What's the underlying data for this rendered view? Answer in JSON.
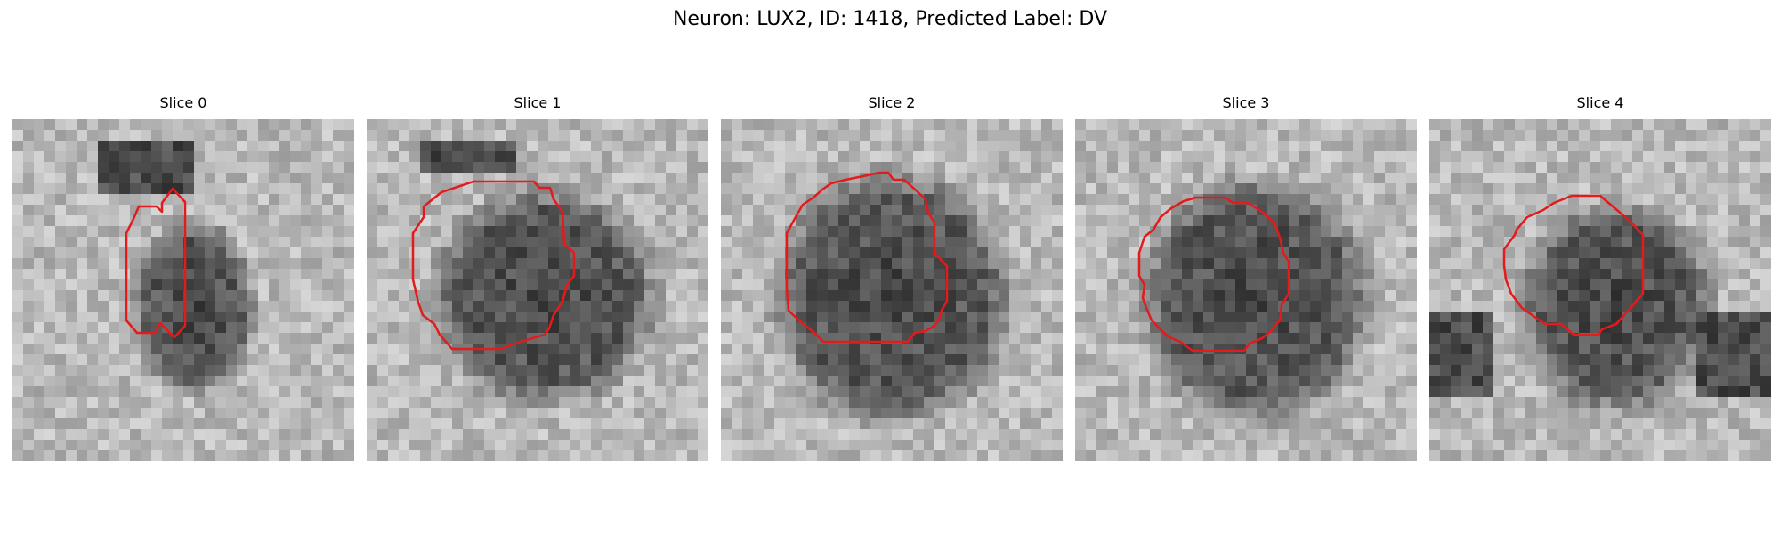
{
  "figure": {
    "title": "Neuron: LUX2, ID: 1418, Predicted Label: DV"
  },
  "colors": {
    "contour": "#e41a1c",
    "background": "#ffffff"
  },
  "panels": [
    {
      "title": "Slice 0"
    },
    {
      "title": "Slice 1"
    },
    {
      "title": "Slice 2"
    },
    {
      "title": "Slice 3"
    },
    {
      "title": "Slice 4"
    }
  ]
}
